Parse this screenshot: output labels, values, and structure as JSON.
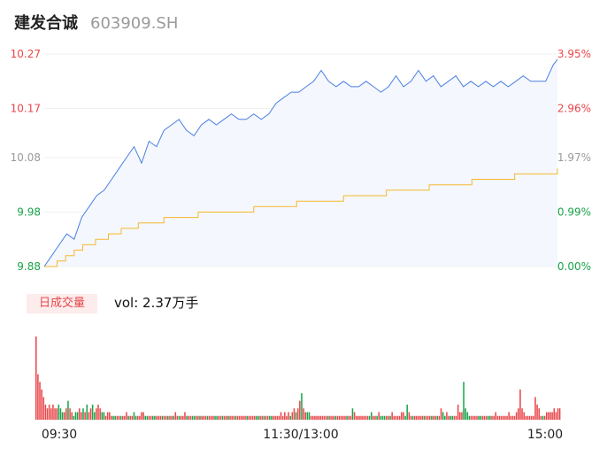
{
  "header": {
    "name": "建发合诚",
    "code": "603909.SH"
  },
  "volume_panel": {
    "label": "日成交量",
    "vol_text": "vol: 2.37万手"
  },
  "colors": {
    "up": "#e8474a",
    "down": "#1aa34a",
    "flat": "#9a9a9a",
    "price_line": "#4a7fe0",
    "avg_line": "#f5b82e"
  },
  "chart_data": [
    {
      "type": "line",
      "title": "",
      "prev_close": 9.88,
      "y_ticks": [
        {
          "price": "10.27",
          "pct": "3.95%",
          "value": 10.27,
          "tone": "up"
        },
        {
          "price": "10.17",
          "pct": "2.96%",
          "value": 10.17,
          "tone": "up"
        },
        {
          "price": "10.08",
          "pct": "1.97%",
          "value": 10.08,
          "tone": "flat"
        },
        {
          "price": "9.98",
          "pct": "0.99%",
          "value": 9.98,
          "tone": "down"
        },
        {
          "price": "9.88",
          "pct": "0.00%",
          "value": 9.88,
          "tone": "down"
        }
      ],
      "ylim": [
        9.88,
        10.27
      ],
      "series": [
        {
          "role": "price",
          "values": [
            9.88,
            9.9,
            9.92,
            9.94,
            9.93,
            9.97,
            9.99,
            10.01,
            10.02,
            10.04,
            10.06,
            10.08,
            10.1,
            10.07,
            10.11,
            10.1,
            10.13,
            10.14,
            10.15,
            10.13,
            10.12,
            10.14,
            10.15,
            10.14,
            10.15,
            10.16,
            10.15,
            10.15,
            10.16,
            10.15,
            10.16,
            10.18,
            10.19,
            10.2,
            10.2,
            10.21,
            10.22,
            10.24,
            10.22,
            10.21,
            10.22,
            10.21,
            10.21,
            10.22,
            10.21,
            10.2,
            10.21,
            10.23,
            10.21,
            10.22,
            10.24,
            10.22,
            10.23,
            10.21,
            10.22,
            10.23,
            10.21,
            10.22,
            10.21,
            10.22,
            10.21,
            10.22,
            10.21,
            10.22,
            10.23,
            10.22,
            10.22,
            10.22,
            10.25,
            10.26
          ],
          "minute_per_point": 3.5
        },
        {
          "role": "average",
          "steps": [
            {
              "t": 0,
              "v": 9.88
            },
            {
              "t": 6,
              "v": 9.89
            },
            {
              "t": 10,
              "v": 9.9
            },
            {
              "t": 14,
              "v": 9.91
            },
            {
              "t": 18,
              "v": 9.92
            },
            {
              "t": 24,
              "v": 9.93
            },
            {
              "t": 30,
              "v": 9.94
            },
            {
              "t": 36,
              "v": 9.95
            },
            {
              "t": 44,
              "v": 9.96
            },
            {
              "t": 56,
              "v": 9.97
            },
            {
              "t": 72,
              "v": 9.98
            },
            {
              "t": 98,
              "v": 9.99
            },
            {
              "t": 118,
              "v": 10.0
            },
            {
              "t": 140,
              "v": 10.01
            },
            {
              "t": 160,
              "v": 10.02
            },
            {
              "t": 180,
              "v": 10.03
            },
            {
              "t": 200,
              "v": 10.04
            },
            {
              "t": 220,
              "v": 10.05
            },
            {
              "t": 240,
              "v": 10.06
            }
          ]
        }
      ]
    },
    {
      "type": "bar",
      "title": "",
      "x_ticks": [
        "09:30",
        "11:30/13:00",
        "15:00"
      ],
      "volumes": [
        22,
        12,
        10,
        8,
        6,
        4,
        3,
        4,
        3,
        4,
        3,
        3,
        4,
        3,
        2,
        2,
        3,
        5,
        3,
        2,
        1,
        2,
        2,
        3,
        2,
        3,
        2,
        4,
        2,
        3,
        4,
        2,
        3,
        4,
        3,
        2,
        2,
        1,
        2,
        2,
        1,
        1,
        1,
        1,
        1,
        1,
        1,
        1,
        2,
        1,
        1,
        1,
        2,
        1,
        1,
        1,
        2,
        2,
        1,
        1,
        1,
        1,
        1,
        1,
        1,
        1,
        1,
        1,
        1,
        1,
        1,
        1,
        1,
        1,
        2,
        1,
        1,
        1,
        1,
        2,
        1,
        1,
        1,
        1,
        1,
        1,
        1,
        1,
        1,
        1,
        1,
        1,
        1,
        1,
        1,
        1,
        1,
        1,
        1,
        1,
        1,
        1,
        1,
        1,
        1,
        1,
        1,
        1,
        1,
        1,
        1,
        1,
        1,
        1,
        1,
        1,
        1,
        1,
        1,
        1,
        1,
        1,
        1,
        1,
        1,
        1,
        1,
        1,
        1,
        1,
        2,
        1,
        2,
        1,
        2,
        1,
        2,
        3,
        2,
        3,
        5,
        7,
        3,
        2,
        2,
        2,
        1,
        1,
        1,
        1,
        1,
        1,
        1,
        1,
        1,
        1,
        1,
        1,
        1,
        1,
        1,
        1,
        1,
        1,
        1,
        1,
        1,
        1,
        3,
        2,
        1,
        1,
        1,
        1,
        1,
        1,
        1,
        1,
        2,
        1,
        1,
        1,
        2,
        1,
        1,
        1,
        1,
        1,
        1,
        2,
        1,
        1,
        1,
        1,
        2,
        2,
        1,
        4,
        2,
        1,
        1,
        1,
        1,
        1,
        1,
        1,
        1,
        1,
        1,
        1,
        1,
        1,
        1,
        1,
        1,
        3,
        2,
        1,
        2,
        1,
        1,
        1,
        1,
        1,
        4,
        2,
        2,
        10,
        3,
        2,
        1,
        1,
        1,
        1,
        1,
        1,
        1,
        1,
        1,
        1,
        1,
        1,
        1,
        1,
        2,
        1,
        1,
        1,
        1,
        1,
        1,
        2,
        1,
        1,
        1,
        2,
        3,
        8,
        3,
        2,
        1,
        1,
        1,
        1,
        1,
        6,
        4,
        3,
        1,
        1,
        1,
        2,
        2,
        2,
        2,
        3,
        2,
        3,
        3
      ],
      "directions": "uuuuuuuuuuuuddduuduuddduududuudduuudduuuudduuduuuduudduuuudduudduuuduuduuduuduuuduudduuduuuduuudduuduuduuuduuuuuduuuudduuduudduuuuuuuuuduuduuduudduuuuuuuuuduuuduuuuuduuduuuuuuuudduududdduuduuuuuuudduuduuuuuduuuduuduudduudduuuuudddduuuudduuudduuuuuuuuuuuuuuuuuuuuuuuuuuud"
    }
  ]
}
